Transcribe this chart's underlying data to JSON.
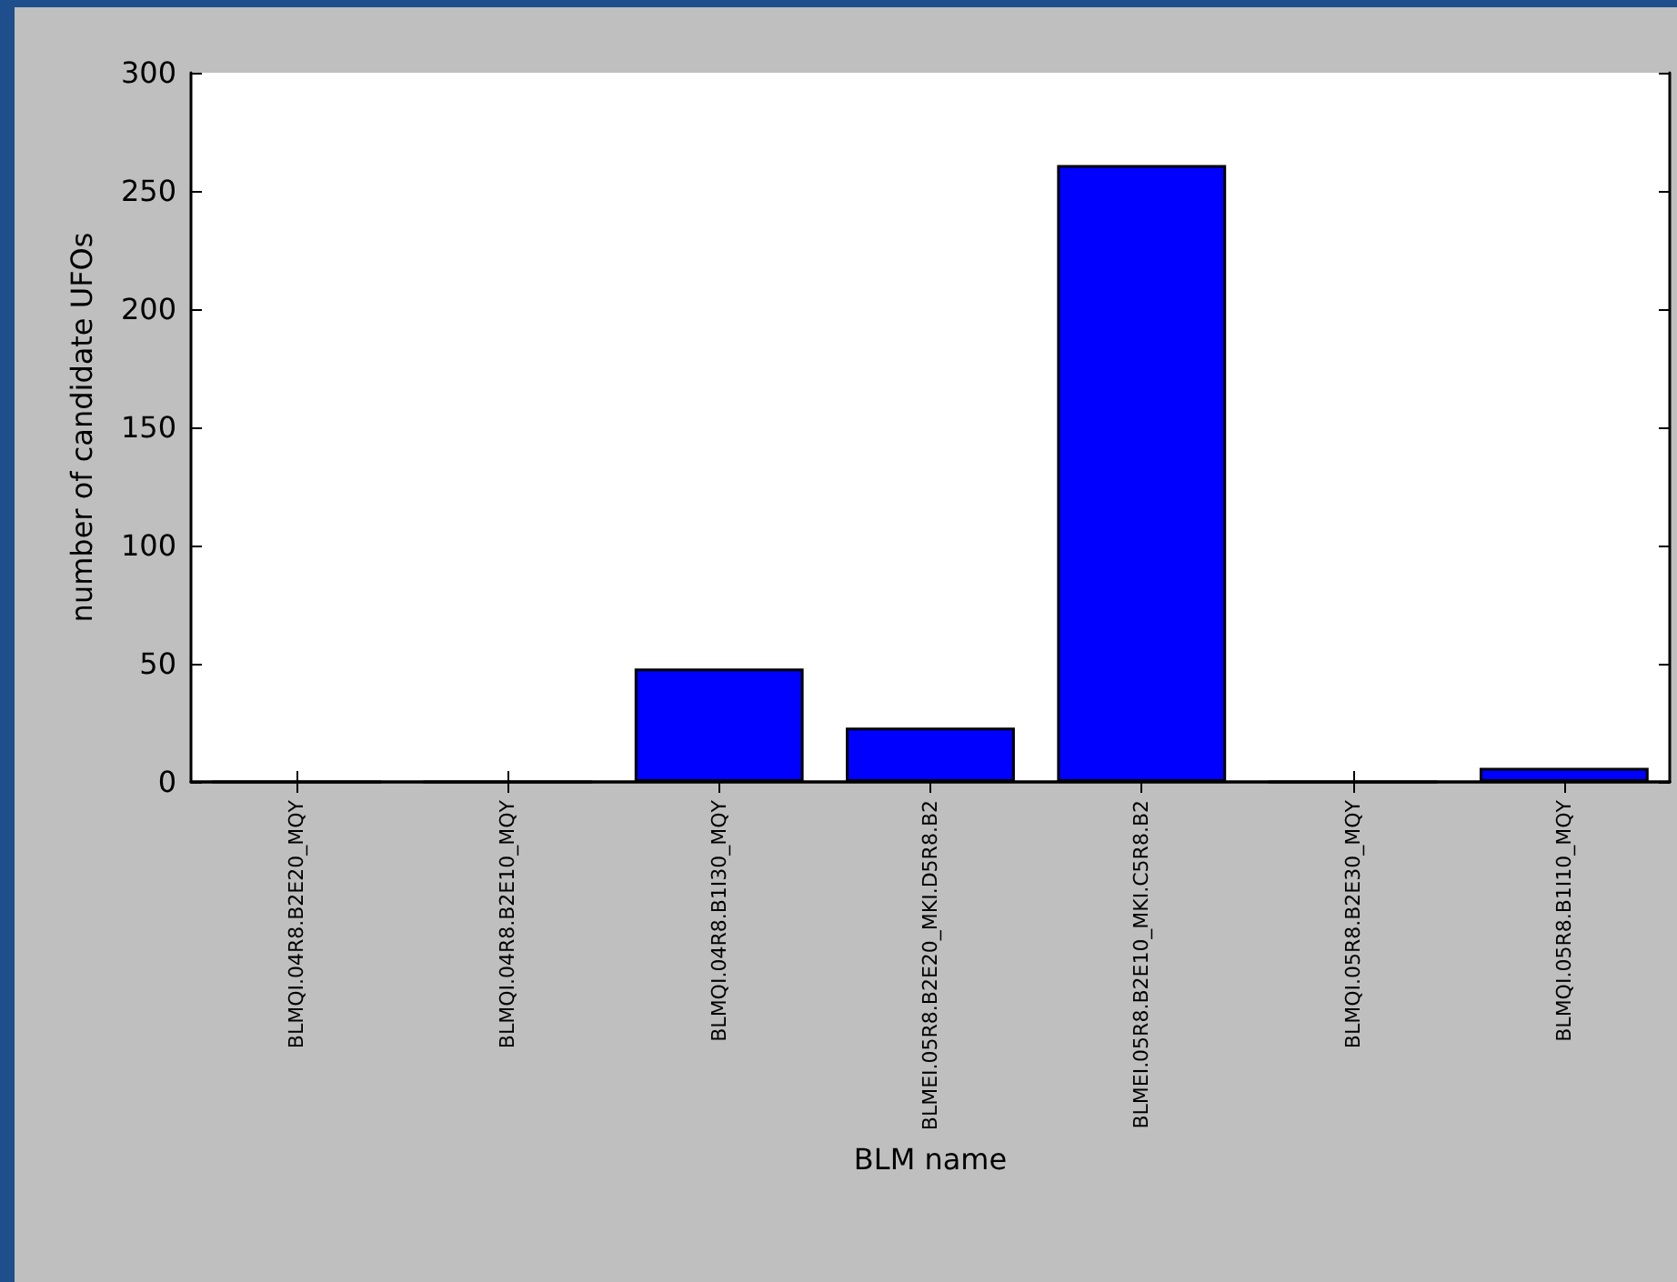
{
  "chart_data": {
    "type": "bar",
    "xlabel": "BLM name",
    "ylabel": "number of candidate UFOs",
    "categories": [
      "BLMQI.04R8.B2E20_MQY",
      "BLMQI.04R8.B2E10_MQY",
      "BLMQI.04R8.B1I30_MQY",
      "BLMEI.05R8.B2E20_MKI.D5R8.B2",
      "BLMEI.05R8.B2E10_MKI.C5R8.B2",
      "BLMQI.05R8.B2E30_MQY",
      "BLMQI.05R8.B1I10_MQY"
    ],
    "values": [
      0,
      0,
      48,
      23,
      261,
      0,
      6
    ],
    "color": "#0000ff",
    "ylim": [
      0,
      300
    ],
    "yticks": [
      0,
      50,
      100,
      150,
      200,
      250,
      300
    ],
    "grid": false
  }
}
